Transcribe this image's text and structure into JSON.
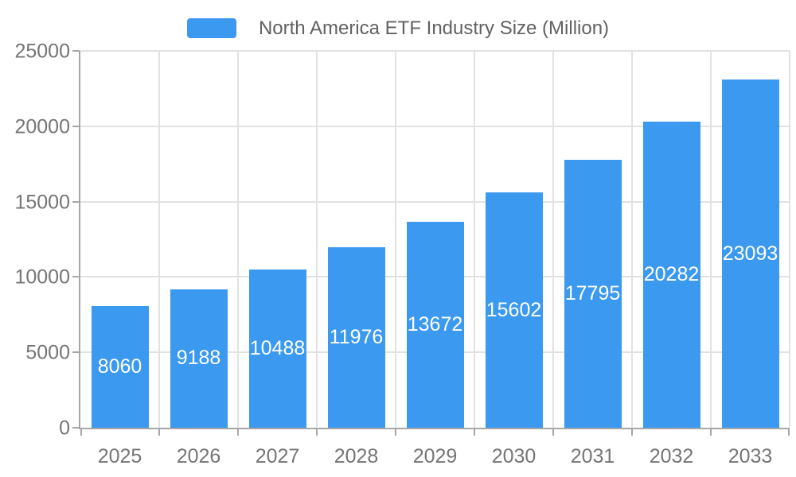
{
  "legend": {
    "label": "North America ETF Industry Size (Million)"
  },
  "colors": {
    "bar": "#3B99F0",
    "axis_line": "#A6A6A6",
    "gridline": "#E2E2E2",
    "axis_label": "#757575",
    "legend_text": "#616161",
    "value_label": "#FFFFFF",
    "background": "#FFFFFF"
  },
  "chart_data": {
    "type": "bar",
    "title": "North America ETF Industry Size (Million)",
    "categories": [
      "2025",
      "2026",
      "2027",
      "2028",
      "2029",
      "2030",
      "2031",
      "2032",
      "2033"
    ],
    "values": [
      8060,
      9188,
      10488,
      11976,
      13672,
      15602,
      17795,
      20282,
      23093
    ],
    "series": [
      {
        "name": "North America ETF Industry Size (Million)",
        "values": [
          8060,
          9188,
          10488,
          11976,
          13672,
          15602,
          17795,
          20282,
          23093
        ]
      }
    ],
    "xlabel": "",
    "ylabel": "",
    "ylim": [
      0,
      25000
    ],
    "yticks": [
      0,
      5000,
      10000,
      15000,
      20000,
      25000
    ],
    "grid": true,
    "grid_vertical": true,
    "legend_position": "top-center",
    "value_label_position": "inside-center"
  }
}
